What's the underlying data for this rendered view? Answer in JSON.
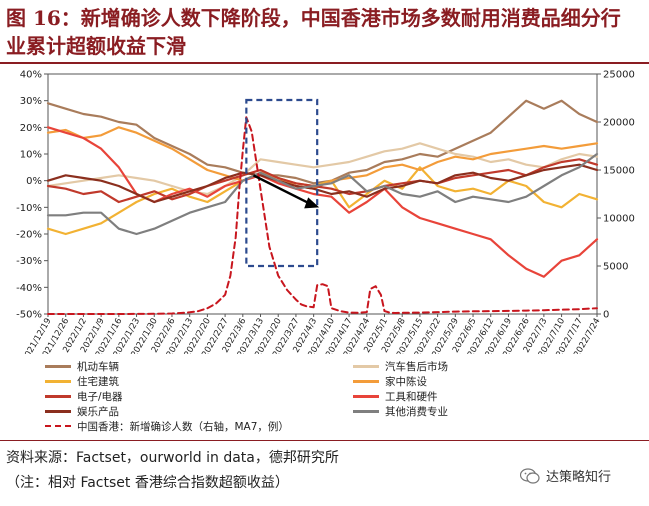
{
  "title": "图 16：新增确诊人数下降阶段，中国香港市场多数耐用消费品细分行业累计超额收益下滑",
  "source": "资料来源：Factset，ourworld in data，德邦研究所",
  "note": "（注：相对 Factset 香港综合指数超额收益）",
  "watermark": "达策略知行",
  "chart_data": {
    "type": "line",
    "title": "",
    "y_left_range": [
      -50,
      40
    ],
    "y_left_ticks": [
      "40%",
      "30%",
      "20%",
      "10%",
      "0%",
      "-10%",
      "-20%",
      "-30%",
      "-40%",
      "-50%"
    ],
    "y_right_range": [
      0,
      25000
    ],
    "y_right_ticks": [
      "25000",
      "20000",
      "15000",
      "10000",
      "5000",
      "0"
    ],
    "x_tick_labels": [
      "2021/12/19",
      "2021/12/26",
      "2022/1/2",
      "2022/1/9",
      "2022/1/16",
      "2022/1/23",
      "2022/1/30",
      "2022/2/6",
      "2022/2/13",
      "2022/2/20",
      "2022/2/27",
      "2022/3/6",
      "2022/3/13",
      "2022/3/20",
      "2022/3/27",
      "2022/4/3",
      "2022/4/10",
      "2022/4/17",
      "2022/4/24",
      "2022/5/1",
      "2022/5/8",
      "2022/5/15",
      "2022/5/22",
      "2022/5/29",
      "2022/6/5",
      "2022/6/12",
      "2022/6/19",
      "2022/6/26",
      "2022/7/3",
      "2022/7/10",
      "2022/7/17",
      "2022/7/24"
    ],
    "highlight_range": [
      "2022/3/6",
      "2022/4/3"
    ],
    "series": [
      {
        "name": "机动车辆",
        "color": "#a97c5b",
        "axis": "left",
        "values": [
          29,
          27,
          25,
          24,
          22,
          21,
          16,
          13,
          10,
          6,
          5,
          3,
          2,
          2,
          1,
          -1,
          0,
          3,
          4,
          7,
          8,
          10,
          9,
          12,
          15,
          18,
          24,
          30,
          27,
          30,
          25,
          22
        ]
      },
      {
        "name": "汽车售后市场",
        "color": "#e3c9a6",
        "axis": "left",
        "values": [
          -2,
          -1,
          0,
          1,
          2,
          1,
          0,
          -2,
          -4,
          -5,
          -2,
          2,
          8,
          7,
          6,
          5,
          6,
          7,
          9,
          11,
          12,
          14,
          12,
          10,
          9,
          7,
          8,
          6,
          5,
          8,
          10,
          9
        ]
      },
      {
        "name": "住宅建筑",
        "color": "#f2b233",
        "axis": "left",
        "values": [
          -18,
          -20,
          -18,
          -16,
          -12,
          -8,
          -5,
          -3,
          -6,
          -8,
          -4,
          0,
          3,
          1,
          -1,
          -2,
          0,
          -10,
          -5,
          0,
          -3,
          5,
          -2,
          -4,
          -3,
          -5,
          0,
          -2,
          -8,
          -10,
          -5,
          -7
        ]
      },
      {
        "name": "家中陈设",
        "color": "#f39c3a",
        "axis": "left",
        "values": [
          18,
          19,
          16,
          17,
          20,
          18,
          15,
          12,
          8,
          4,
          2,
          0,
          3,
          1,
          -2,
          -3,
          0,
          1,
          2,
          5,
          6,
          4,
          7,
          9,
          8,
          10,
          11,
          12,
          13,
          12,
          13,
          14
        ]
      },
      {
        "name": "电子/电器",
        "color": "#c0392b",
        "axis": "left",
        "values": [
          -2,
          -3,
          -5,
          -4,
          -8,
          -6,
          -4,
          -7,
          -5,
          -2,
          0,
          2,
          4,
          1,
          -1,
          -2,
          -3,
          -5,
          -4,
          -2,
          -1,
          0,
          -1,
          1,
          2,
          3,
          4,
          2,
          5,
          7,
          8,
          6
        ]
      },
      {
        "name": "工具和硬件",
        "color": "#e8443a",
        "axis": "left",
        "values": [
          20,
          18,
          16,
          12,
          5,
          -5,
          -8,
          -5,
          -3,
          -6,
          -2,
          0,
          2,
          -1,
          -3,
          -5,
          -6,
          -12,
          -8,
          -3,
          -10,
          -14,
          -16,
          -18,
          -20,
          -22,
          -28,
          -33,
          -36,
          -30,
          -28,
          -22
        ]
      },
      {
        "name": "娱乐产品",
        "color": "#8b2f1e",
        "axis": "left",
        "values": [
          0,
          2,
          1,
          0,
          -2,
          -5,
          -8,
          -6,
          -4,
          -2,
          1,
          3,
          2,
          0,
          -2,
          -3,
          -5,
          -4,
          -6,
          -3,
          -2,
          0,
          -1,
          2,
          3,
          1,
          0,
          2,
          4,
          5,
          6,
          4
        ]
      },
      {
        "name": "其他消费专业",
        "color": "#7f7f7f",
        "axis": "left",
        "values": [
          -13,
          -13,
          -12,
          -12,
          -18,
          -20,
          -18,
          -15,
          -12,
          -10,
          -8,
          0,
          3,
          0,
          -3,
          -2,
          -1,
          2,
          -4,
          -2,
          -5,
          -6,
          -4,
          -8,
          -6,
          -7,
          -8,
          -6,
          -2,
          2,
          5,
          10
        ]
      },
      {
        "name": "中国香港：新增确诊人数（右轴，MA7，例）",
        "color": "#c8161e",
        "axis": "right",
        "dashed": true,
        "x_pos": [
          0,
          1,
          2,
          3,
          4,
          5,
          6,
          7,
          7.5,
          8,
          8.5,
          9,
          9.5,
          10,
          10.3,
          10.6,
          10.8,
          11,
          11.2,
          11.5,
          12,
          12.5,
          13,
          13.5,
          14,
          14.3,
          14.6,
          15,
          15.2,
          15.5,
          15.8,
          16,
          16.5,
          17,
          17.5,
          18,
          18.2,
          18.5,
          18.8,
          19,
          19.3,
          19.6,
          20,
          21,
          22,
          23,
          24,
          25,
          26,
          27,
          28,
          29,
          30,
          31
        ],
        "values": [
          0,
          0,
          0,
          0,
          0,
          10,
          20,
          50,
          100,
          180,
          300,
          600,
          1100,
          2000,
          4000,
          8000,
          13000,
          17000,
          20500,
          19000,
          13000,
          7000,
          4000,
          2500,
          1500,
          1000,
          800,
          700,
          3000,
          3100,
          2900,
          600,
          300,
          150,
          120,
          200,
          2600,
          2900,
          2000,
          300,
          150,
          100,
          120,
          150,
          200,
          250,
          280,
          300,
          320,
          350,
          400,
          450,
          500,
          600
        ]
      }
    ],
    "annotations": [
      {
        "type": "box",
        "style": "dashed",
        "color": "#2c4a8e"
      },
      {
        "type": "arrow",
        "color": "#000000"
      }
    ]
  }
}
